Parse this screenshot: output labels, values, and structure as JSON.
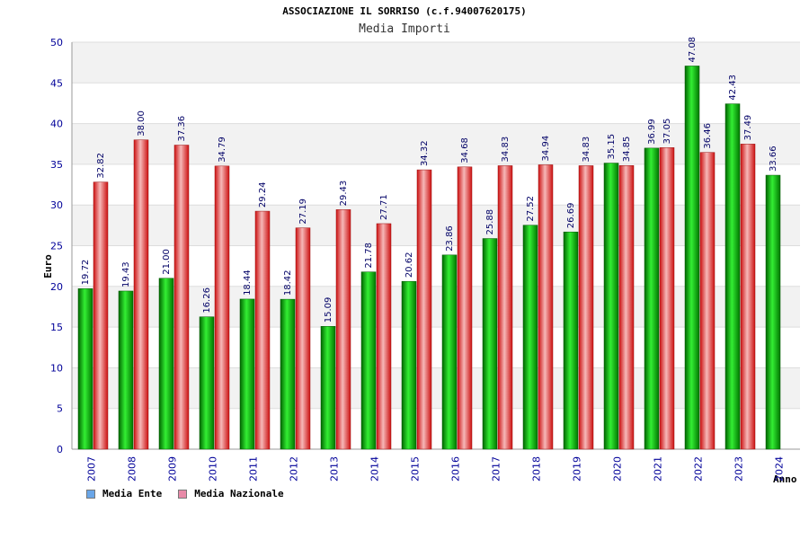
{
  "header": {
    "title": "ASSOCIAZIONE IL SORRISO (c.f.94007620175)",
    "subtitle": "Media Importi"
  },
  "chart_data": {
    "type": "bar",
    "title": "Media Importi",
    "xlabel": "Anno",
    "ylabel": "Euro",
    "ylim": [
      0,
      50
    ],
    "yticks": [
      0,
      5,
      10,
      15,
      20,
      25,
      30,
      35,
      40,
      45,
      50
    ],
    "grid": true,
    "legend_position": "bottom-left",
    "categories": [
      "2007",
      "2008",
      "2009",
      "2010",
      "2011",
      "2012",
      "2013",
      "2014",
      "2015",
      "2016",
      "2017",
      "2018",
      "2019",
      "2020",
      "2021",
      "2022",
      "2023",
      "2024"
    ],
    "series": [
      {
        "name": "Media Ente",
        "legend_color": "#6aa6e8",
        "bar_color": "#11bb11",
        "values": [
          19.72,
          19.43,
          21.0,
          16.26,
          18.44,
          18.42,
          15.09,
          21.78,
          20.62,
          23.86,
          25.88,
          27.52,
          26.69,
          35.15,
          36.99,
          47.08,
          42.43,
          33.66
        ],
        "labels": [
          "19.72",
          "19.43",
          "21.00",
          "16.26",
          "18.44",
          "18.42",
          "15.09",
          "21.78",
          "20.62",
          "23.86",
          "25.88",
          "27.52",
          "26.69",
          "35.15",
          "36.99",
          "47.08",
          "42.43",
          "33.66"
        ]
      },
      {
        "name": "Media Nazionale",
        "legend_color": "#e88aa8",
        "bar_color": "#e03a3a",
        "values": [
          32.82,
          38.0,
          37.36,
          34.79,
          29.24,
          27.19,
          29.43,
          27.71,
          34.32,
          34.68,
          34.83,
          34.94,
          34.83,
          34.85,
          37.05,
          36.46,
          37.49,
          null
        ],
        "labels": [
          "32.82",
          "38.00",
          "37.36",
          "34.79",
          "29.24",
          "27.19",
          "29.43",
          "27.71",
          "34.32",
          "34.68",
          "34.83",
          "34.94",
          "34.83",
          "34.85",
          "37.05",
          "36.46",
          "37.49",
          ""
        ]
      }
    ],
    "colors": {
      "tick_label": "#000099",
      "value_label": "#000066",
      "band_light": "#ffffff",
      "band_dark": "#f2f2f2",
      "grid": "#dddddd",
      "axis": "#999999"
    }
  }
}
